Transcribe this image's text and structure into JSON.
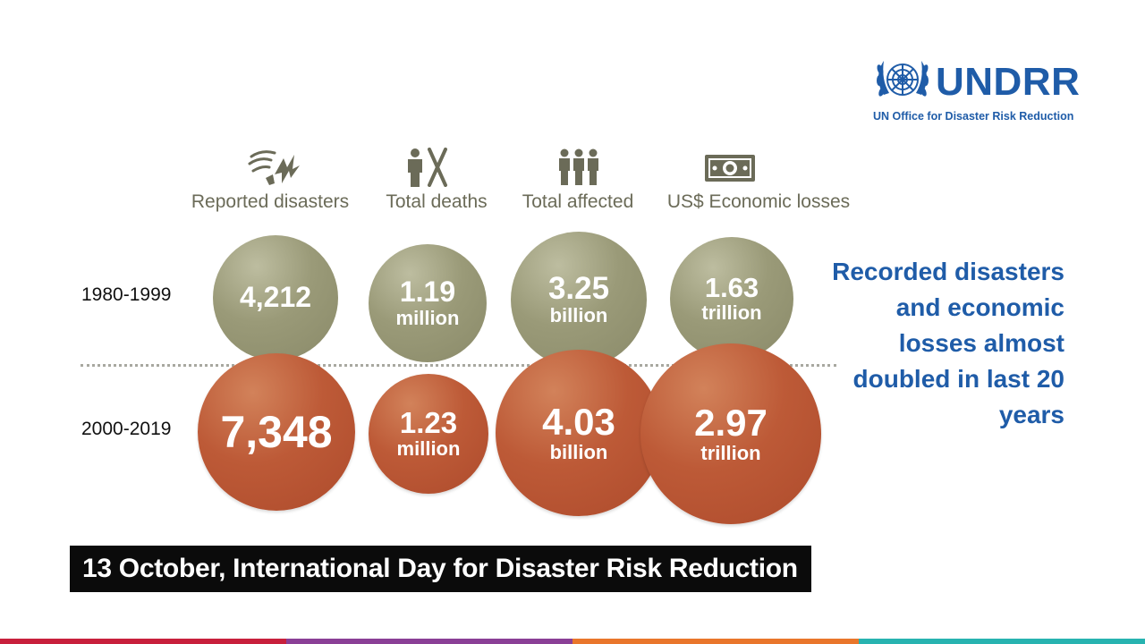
{
  "logo": {
    "name": "UNDRR",
    "subtitle": "UN Office for Disaster Risk Reduction"
  },
  "headers": [
    {
      "label": "Reported disasters",
      "icon": "storm-icon"
    },
    {
      "label": "Total deaths",
      "icon": "deaths-icon"
    },
    {
      "label": "Total affected",
      "icon": "people-icon"
    },
    {
      "label": "US$ Economic losses",
      "icon": "money-icon"
    }
  ],
  "periods": [
    {
      "label": "1980-1999",
      "values": [
        {
          "value": "4,212",
          "unit": ""
        },
        {
          "value": "1.19",
          "unit": "million"
        },
        {
          "value": "3.25",
          "unit": "billion"
        },
        {
          "value": "1.63",
          "unit": "trillion"
        }
      ]
    },
    {
      "label": "2000-2019",
      "values": [
        {
          "value": "7,348",
          "unit": ""
        },
        {
          "value": "1.23",
          "unit": "million"
        },
        {
          "value": "4.03",
          "unit": "billion"
        },
        {
          "value": "2.97",
          "unit": "trillion"
        }
      ]
    }
  ],
  "message": "Recorded disasters and economic losses almost doubled in last 20 years",
  "banner": "13 October, International Day for Disaster Risk Reduction",
  "colors": {
    "brand_blue": "#1f5ca8",
    "olive": "#9a9a78",
    "rust": "#bd5a37",
    "icon_gray": "#6b6b58",
    "stripe": [
      "#c8203c",
      "#8a3f96",
      "#e9762b",
      "#27b3b0"
    ]
  }
}
